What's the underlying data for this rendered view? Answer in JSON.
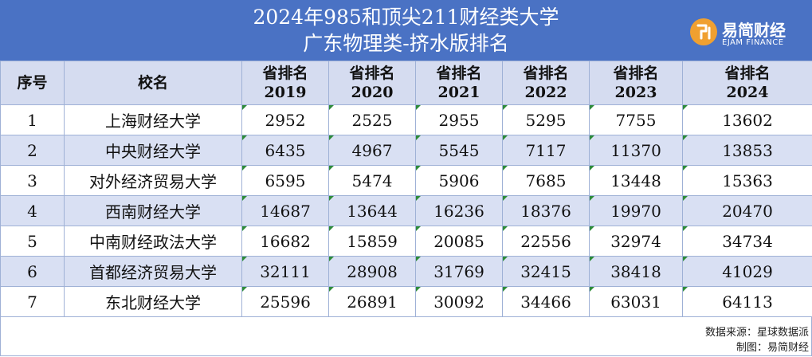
{
  "title_line1": "2024年985和顶尖211财经类大学",
  "title_line2": "广东物理类-挤水版排名",
  "logo": {
    "icon": "ejam-logo-icon",
    "name_cn": "易简财经",
    "name_en": "EJAM FINANCE",
    "color": "#f0a030"
  },
  "table": {
    "headers": {
      "index": "序号",
      "school": "校名",
      "years": [
        {
          "label": "省排名",
          "year": "2019"
        },
        {
          "label": "省排名",
          "year": "2020"
        },
        {
          "label": "省排名",
          "year": "2021"
        },
        {
          "label": "省排名",
          "year": "2022"
        },
        {
          "label": "省排名",
          "year": "2023"
        },
        {
          "label": "省排名",
          "year": "2024"
        }
      ]
    },
    "rows": [
      {
        "index": "1",
        "school": "上海财经大学",
        "ranks": [
          "2952",
          "2525",
          "2955",
          "5295",
          "7755",
          "13602"
        ]
      },
      {
        "index": "2",
        "school": "中央财经大学",
        "ranks": [
          "6435",
          "4967",
          "5545",
          "7117",
          "11370",
          "13853"
        ]
      },
      {
        "index": "3",
        "school": "对外经济贸易大学",
        "ranks": [
          "6595",
          "5474",
          "5906",
          "7685",
          "13448",
          "15363"
        ]
      },
      {
        "index": "4",
        "school": "西南财经大学",
        "ranks": [
          "14687",
          "13644",
          "16236",
          "18376",
          "19970",
          "20470"
        ]
      },
      {
        "index": "5",
        "school": "中南财经政法大学",
        "ranks": [
          "16682",
          "15859",
          "20085",
          "22556",
          "32974",
          "34734"
        ]
      },
      {
        "index": "6",
        "school": "首都经济贸易大学",
        "ranks": [
          "32111",
          "28908",
          "31769",
          "32415",
          "38418",
          "41029"
        ]
      },
      {
        "index": "7",
        "school": "东北财经大学",
        "ranks": [
          "25596",
          "26891",
          "30092",
          "34466",
          "63031",
          "64113"
        ]
      }
    ]
  },
  "footer": {
    "source": "数据来源：星球数据派",
    "author": "制图：易简财经"
  }
}
